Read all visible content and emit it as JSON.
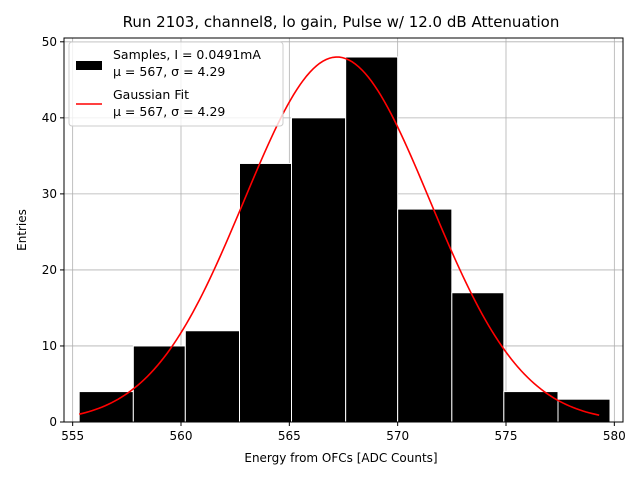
{
  "chart_data": {
    "type": "bar",
    "title": "Run 2103, channel8, lo gain, Pulse w/ 12.0 dB Attenuation",
    "xlabel": "Energy from OFCs [ADC Counts]",
    "ylabel": "Entries",
    "xlim": [
      554.6,
      580.4
    ],
    "ylim": [
      0,
      50.5
    ],
    "xticks": [
      555,
      560,
      565,
      570,
      575,
      580
    ],
    "yticks": [
      0,
      10,
      20,
      30,
      40,
      50
    ],
    "grid": true,
    "bins": [
      {
        "left": 555.3,
        "right": 557.8,
        "count": 4
      },
      {
        "left": 557.8,
        "right": 560.2,
        "count": 10
      },
      {
        "left": 560.2,
        "right": 562.7,
        "count": 12
      },
      {
        "left": 562.7,
        "right": 565.1,
        "count": 34
      },
      {
        "left": 565.1,
        "right": 567.6,
        "count": 40
      },
      {
        "left": 567.6,
        "right": 570.0,
        "count": 48
      },
      {
        "left": 570.0,
        "right": 572.5,
        "count": 28
      },
      {
        "left": 572.5,
        "right": 574.9,
        "count": 17
      },
      {
        "left": 574.9,
        "right": 577.4,
        "count": 4
      },
      {
        "left": 577.4,
        "right": 579.8,
        "count": 3
      }
    ],
    "fit": {
      "type": "gaussian",
      "mu": 567.2,
      "sigma": 4.29,
      "amplitude": 48,
      "x_range": [
        555.3,
        579.3
      ],
      "color": "#ff0000"
    },
    "legend": {
      "placement": "top-left",
      "entries": [
        {
          "label": "Samples, I = 0.0491mA",
          "sublabel": "μ = 567, σ = 4.29",
          "kind": "patch",
          "color": "#000000"
        },
        {
          "label": "Gaussian Fit",
          "sublabel": "μ = 567, σ = 4.29",
          "kind": "line",
          "color": "#ff0000"
        }
      ]
    }
  }
}
